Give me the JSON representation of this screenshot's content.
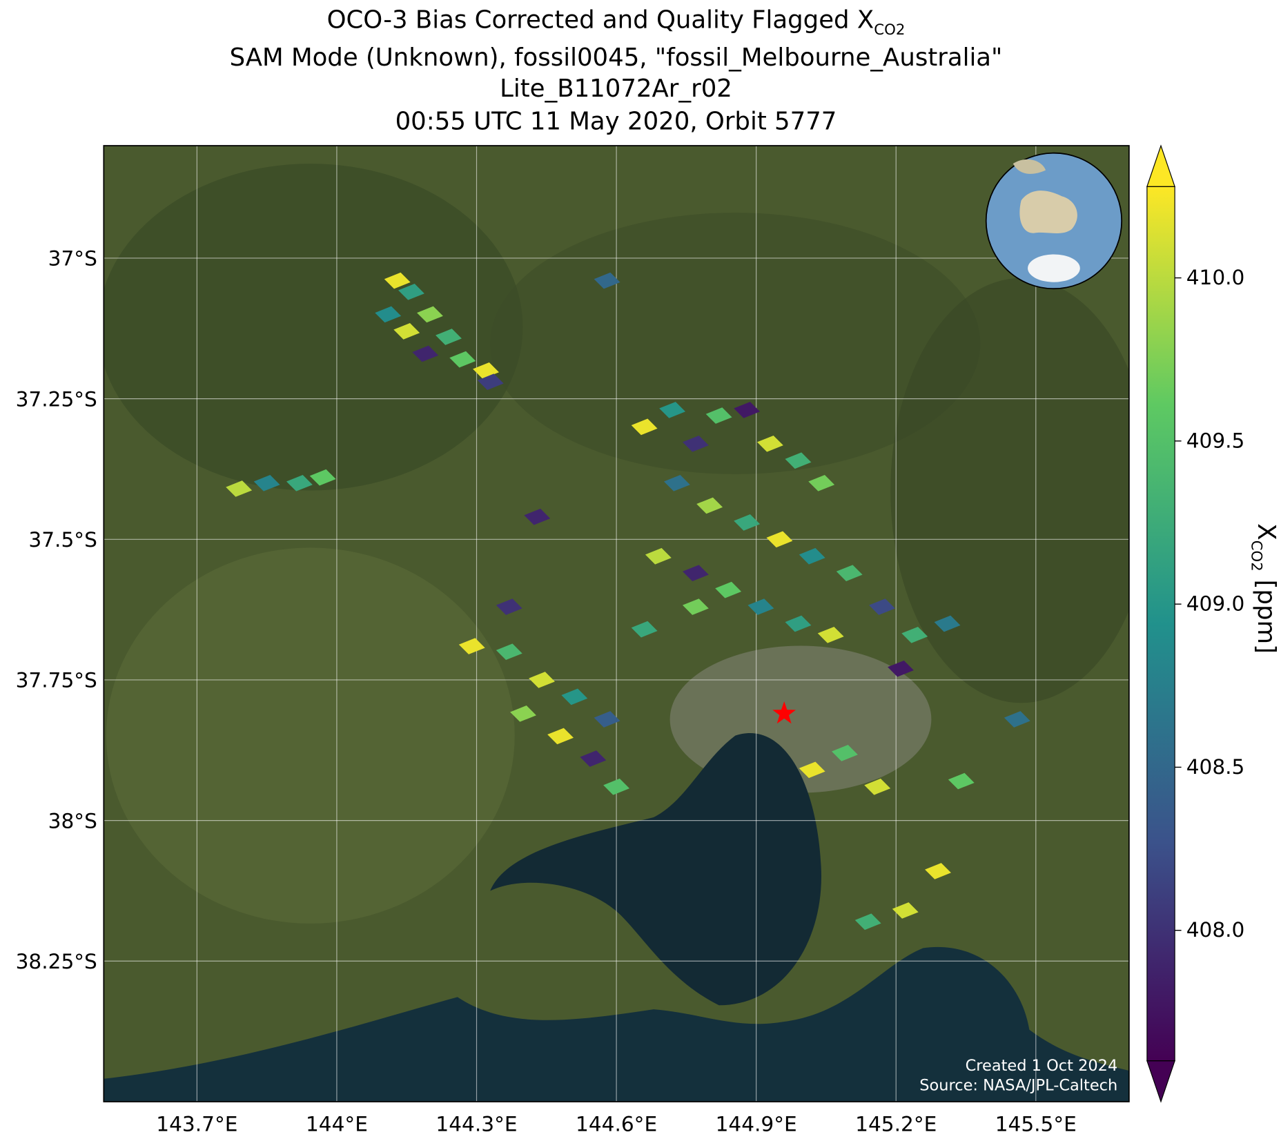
{
  "chart_data": {
    "type": "map",
    "title": {
      "line1_main": "OCO-3 Bias Corrected and Quality Flagged X",
      "line1_sub": "CO2",
      "line2": "SAM Mode (Unknown), fossil0045, \"fossil_Melbourne_Australia\"",
      "line3": "Lite_B11072Ar_r02",
      "line4": "00:55 UTC 11 May 2020, Orbit 5777"
    },
    "xlim": [
      143.5,
      145.7
    ],
    "ylim": [
      -38.5,
      -36.8
    ],
    "xticks": [
      {
        "value": 143.7,
        "label": "143.7°E"
      },
      {
        "value": 144.0,
        "label": "144°E"
      },
      {
        "value": 144.3,
        "label": "144.3°E"
      },
      {
        "value": 144.6,
        "label": "144.6°E"
      },
      {
        "value": 144.9,
        "label": "144.9°E"
      },
      {
        "value": 145.2,
        "label": "145.2°E"
      },
      {
        "value": 145.5,
        "label": "145.5°E"
      }
    ],
    "yticks": [
      {
        "value": -37,
        "label": "37°S"
      },
      {
        "value": -37.25,
        "label": "37.25°S"
      },
      {
        "value": -37.5,
        "label": "37.5°S"
      },
      {
        "value": -37.75,
        "label": "37.75°S"
      },
      {
        "value": -38,
        "label": "38°S"
      },
      {
        "value": -38.25,
        "label": "38.25°S"
      }
    ],
    "grid": true,
    "colormap": "viridis",
    "clim": [
      407.6,
      410.28
    ],
    "cticks": [
      {
        "value": 408.0,
        "label": "408.0"
      },
      {
        "value": 408.5,
        "label": "408.5"
      },
      {
        "value": 409.0,
        "label": "409.0"
      },
      {
        "value": 409.5,
        "label": "409.5"
      },
      {
        "value": 410.0,
        "label": "410.0"
      }
    ],
    "colorbar_label": {
      "main": "X",
      "sub": "CO2",
      "unit": "[ppm]"
    },
    "target": {
      "lon": 144.96,
      "lat": -37.81,
      "color": "#ff0000"
    },
    "annotations": [
      "Created 1 Oct 2024",
      "Source: NASA/JPL-Caltech"
    ],
    "soundings": [
      {
        "lon": 144.13,
        "lat": -37.04,
        "xco2": 410.2
      },
      {
        "lon": 144.16,
        "lat": -37.06,
        "xco2": 409.1
      },
      {
        "lon": 144.11,
        "lat": -37.1,
        "xco2": 408.9
      },
      {
        "lon": 144.2,
        "lat": -37.1,
        "xco2": 409.8
      },
      {
        "lon": 144.15,
        "lat": -37.13,
        "xco2": 410.1
      },
      {
        "lon": 144.24,
        "lat": -37.14,
        "xco2": 409.3
      },
      {
        "lon": 144.19,
        "lat": -37.17,
        "xco2": 407.9
      },
      {
        "lon": 144.27,
        "lat": -37.18,
        "xco2": 409.6
      },
      {
        "lon": 144.32,
        "lat": -37.2,
        "xco2": 410.2
      },
      {
        "lon": 144.33,
        "lat": -37.22,
        "xco2": 408.1
      },
      {
        "lon": 143.79,
        "lat": -37.41,
        "xco2": 410.0
      },
      {
        "lon": 143.85,
        "lat": -37.4,
        "xco2": 408.8
      },
      {
        "lon": 143.92,
        "lat": -37.4,
        "xco2": 409.2
      },
      {
        "lon": 143.97,
        "lat": -37.39,
        "xco2": 409.6
      },
      {
        "lon": 144.66,
        "lat": -37.3,
        "xco2": 410.2
      },
      {
        "lon": 144.72,
        "lat": -37.27,
        "xco2": 409.0
      },
      {
        "lon": 144.77,
        "lat": -37.33,
        "xco2": 408.0
      },
      {
        "lon": 144.82,
        "lat": -37.28,
        "xco2": 409.5
      },
      {
        "lon": 144.88,
        "lat": -37.27,
        "xco2": 407.8
      },
      {
        "lon": 144.93,
        "lat": -37.33,
        "xco2": 410.1
      },
      {
        "lon": 144.99,
        "lat": -37.36,
        "xco2": 409.3
      },
      {
        "lon": 145.04,
        "lat": -37.4,
        "xco2": 409.7
      },
      {
        "lon": 144.73,
        "lat": -37.4,
        "xco2": 408.6
      },
      {
        "lon": 144.8,
        "lat": -37.44,
        "xco2": 409.9
      },
      {
        "lon": 144.88,
        "lat": -37.47,
        "xco2": 409.2
      },
      {
        "lon": 144.95,
        "lat": -37.5,
        "xco2": 410.2
      },
      {
        "lon": 145.02,
        "lat": -37.53,
        "xco2": 408.9
      },
      {
        "lon": 145.1,
        "lat": -37.56,
        "xco2": 409.4
      },
      {
        "lon": 144.69,
        "lat": -37.53,
        "xco2": 410.0
      },
      {
        "lon": 144.77,
        "lat": -37.56,
        "xco2": 407.9
      },
      {
        "lon": 144.84,
        "lat": -37.59,
        "xco2": 409.6
      },
      {
        "lon": 144.91,
        "lat": -37.62,
        "xco2": 408.8
      },
      {
        "lon": 144.99,
        "lat": -37.65,
        "xco2": 409.1
      },
      {
        "lon": 145.06,
        "lat": -37.67,
        "xco2": 410.1
      },
      {
        "lon": 145.17,
        "lat": -37.62,
        "xco2": 408.2
      },
      {
        "lon": 145.24,
        "lat": -37.67,
        "xco2": 409.3
      },
      {
        "lon": 145.31,
        "lat": -37.65,
        "xco2": 408.7
      },
      {
        "lon": 145.21,
        "lat": -37.73,
        "xco2": 407.8
      },
      {
        "lon": 144.29,
        "lat": -37.69,
        "xco2": 410.2
      },
      {
        "lon": 144.37,
        "lat": -37.7,
        "xco2": 409.4
      },
      {
        "lon": 144.44,
        "lat": -37.75,
        "xco2": 410.1
      },
      {
        "lon": 144.51,
        "lat": -37.78,
        "xco2": 409.0
      },
      {
        "lon": 144.58,
        "lat": -37.82,
        "xco2": 408.4
      },
      {
        "lon": 144.4,
        "lat": -37.81,
        "xco2": 409.8
      },
      {
        "lon": 144.48,
        "lat": -37.85,
        "xco2": 410.2
      },
      {
        "lon": 144.55,
        "lat": -37.89,
        "xco2": 407.9
      },
      {
        "lon": 144.6,
        "lat": -37.94,
        "xco2": 409.5
      },
      {
        "lon": 144.37,
        "lat": -37.62,
        "xco2": 408.0
      },
      {
        "lon": 144.66,
        "lat": -37.66,
        "xco2": 409.2
      },
      {
        "lon": 144.77,
        "lat": -37.62,
        "xco2": 409.7
      },
      {
        "lon": 145.02,
        "lat": -37.91,
        "xco2": 410.2
      },
      {
        "lon": 145.09,
        "lat": -37.88,
        "xco2": 409.5
      },
      {
        "lon": 145.16,
        "lat": -37.94,
        "xco2": 410.1
      },
      {
        "lon": 145.34,
        "lat": -37.93,
        "xco2": 409.6
      },
      {
        "lon": 145.29,
        "lat": -38.09,
        "xco2": 410.2
      },
      {
        "lon": 145.14,
        "lat": -38.18,
        "xco2": 409.3
      },
      {
        "lon": 145.22,
        "lat": -38.16,
        "xco2": 410.1
      },
      {
        "lon": 144.58,
        "lat": -37.04,
        "xco2": 408.5
      },
      {
        "lon": 144.43,
        "lat": -37.46,
        "xco2": 407.9
      },
      {
        "lon": 145.46,
        "lat": -37.82,
        "xco2": 408.6
      }
    ]
  }
}
